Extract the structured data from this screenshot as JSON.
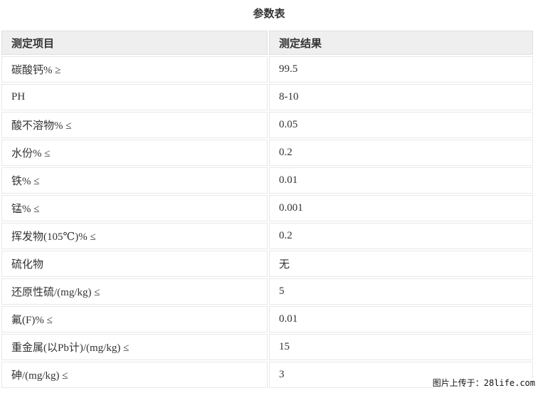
{
  "page": {
    "title": "参数表"
  },
  "table": {
    "headers": [
      "测定项目",
      "测定结果"
    ],
    "rows": [
      {
        "item": "碳酸钙% ≥",
        "result": "99.5"
      },
      {
        "item": "PH",
        "result": "8-10"
      },
      {
        "item": "酸不溶物% ≤",
        "result": "0.05"
      },
      {
        "item": "水份% ≤",
        "result": "0.2"
      },
      {
        "item": "铁% ≤",
        "result": "0.01"
      },
      {
        "item": "锰% ≤",
        "result": "0.001"
      },
      {
        "item": "挥发物(105℃)% ≤",
        "result": "0.2"
      },
      {
        "item": "硫化物",
        "result": "无"
      },
      {
        "item": "还原性硫/(mg/kg) ≤",
        "result": "5"
      },
      {
        "item": "氟(F)% ≤",
        "result": "0.01"
      },
      {
        "item": "重金属(以Pb计)/(mg/kg) ≤",
        "result": "15"
      },
      {
        "item": "砷/(mg/kg) ≤",
        "result": "3"
      }
    ]
  },
  "watermark": {
    "text": "图片上传于：28life.com"
  },
  "colors": {
    "header_bg": "#efefef",
    "cell_border": "#e8e8e8",
    "header_border": "#e0e0e0",
    "text": "#333333",
    "watermark_text": "#111111",
    "background": "#ffffff"
  }
}
